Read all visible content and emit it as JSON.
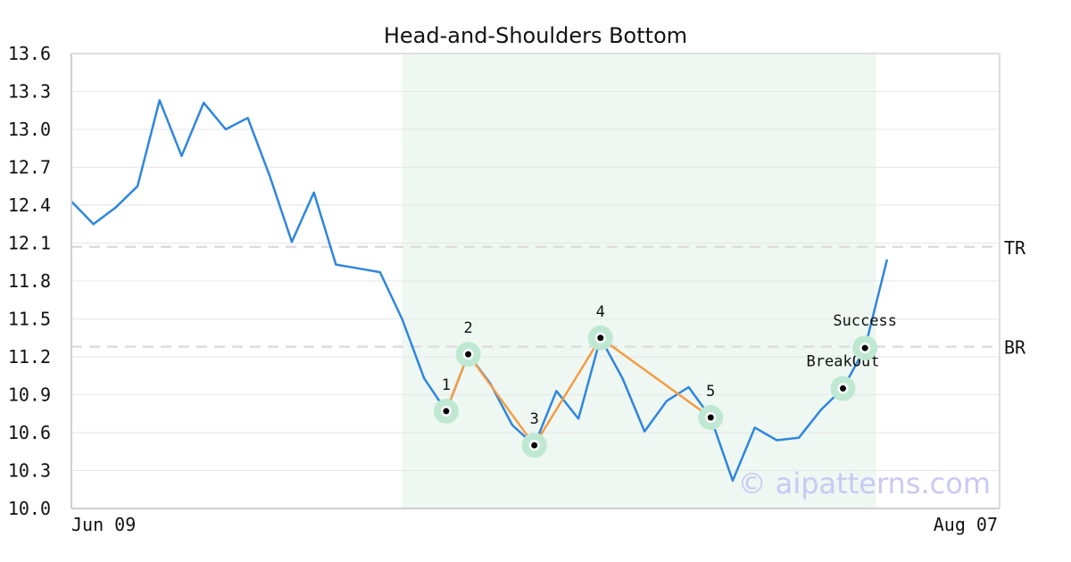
{
  "chart_data": {
    "type": "line",
    "title": "Head-and-Shoulders Bottom",
    "xlabel": "",
    "ylabel": "",
    "ylim": [
      10.0,
      13.6
    ],
    "yticks": [
      "13.6",
      "13.3",
      "13.0",
      "12.7",
      "12.4",
      "12.1",
      "11.8",
      "11.5",
      "11.2",
      "10.9",
      "10.6",
      "10.3",
      "10.0"
    ],
    "x_start_label": "Jun 09",
    "x_end_label": "Aug 07",
    "grid": true,
    "series": [
      {
        "values": [
          12.43,
          12.25,
          12.38,
          12.55,
          13.23,
          12.79,
          13.21,
          13.0,
          13.09,
          12.63,
          12.11,
          12.5,
          11.93,
          11.9,
          11.87,
          11.5,
          11.03,
          10.77,
          11.22,
          10.99,
          10.66,
          10.5,
          10.93,
          10.71,
          11.35,
          11.03,
          10.61,
          10.85,
          10.96,
          10.72,
          10.22,
          10.64,
          10.54,
          10.56,
          10.78,
          10.95,
          11.27,
          11.97
        ],
        "color": "#2e86de"
      }
    ],
    "highlight_range": {
      "from_index": 15,
      "to_index": 36.5,
      "color": "#eef7f2"
    },
    "levels": [
      {
        "label": "TR",
        "value": 12.07
      },
      {
        "label": "BR",
        "value": 11.28
      }
    ],
    "pattern_points": [
      {
        "label": "1",
        "index": 17,
        "value": 10.77
      },
      {
        "label": "2",
        "index": 18,
        "value": 11.22
      },
      {
        "label": "3",
        "index": 21,
        "value": 10.5
      },
      {
        "label": "4",
        "index": 24,
        "value": 11.35
      },
      {
        "label": "5",
        "index": 29,
        "value": 10.72
      }
    ],
    "pattern_line_color": "#f39c45",
    "signals": [
      {
        "label": "BreakOut",
        "index": 35,
        "value": 10.95
      },
      {
        "label": "Success",
        "index": 36,
        "value": 11.27
      }
    ],
    "watermark": "© aipatterns.com"
  }
}
